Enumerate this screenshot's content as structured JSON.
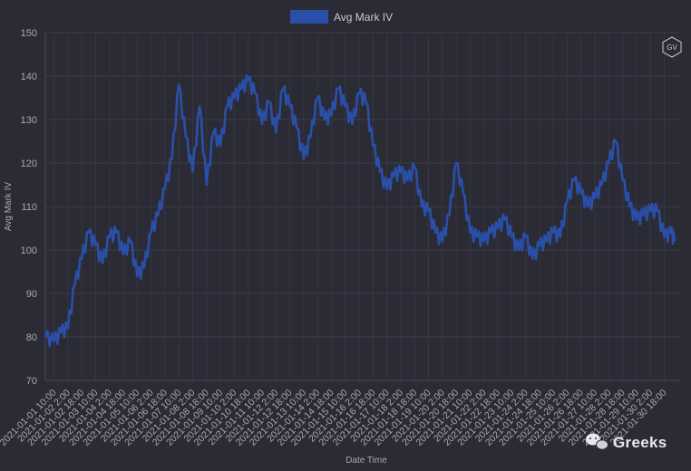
{
  "chart_data": {
    "type": "line",
    "title": "",
    "xlabel": "Date Time",
    "ylabel": "Avg Mark IV",
    "ylim": [
      70,
      150
    ],
    "yticks": [
      70,
      80,
      90,
      100,
      110,
      120,
      130,
      140,
      150
    ],
    "grid": true,
    "legend_position": "top-center",
    "x_tick_labels": [
      "2021-01-01 10:00",
      "2021-01-02 2:00",
      "2021-01-02 18:00",
      "2021-01-03 10:00",
      "2021-01-04 2:00",
      "2021-01-04 18:00",
      "2021-01-05 10:00",
      "2021-01-06 2:00",
      "2021-01-06 18:00",
      "2021-01-07 10:00",
      "2021-01-08 2:00",
      "2021-01-08 18:00",
      "2021-01-09 10:00",
      "2021-01-10 2:00",
      "2021-01-10 18:00",
      "2021-01-11 10:00",
      "2021-01-12 2:00",
      "2021-01-12 18:00",
      "2021-01-13 10:00",
      "2021-01-14 2:00",
      "2021-01-14 18:00",
      "2021-01-15 10:00",
      "2021-01-16 2:00",
      "2021-01-16 18:00",
      "2021-01-17 10:00",
      "2021-01-18 2:00",
      "2021-01-18 18:00",
      "2021-01-19 10:00",
      "2021-01-20 2:00",
      "2021-01-20 18:00",
      "2021-01-21 10:00",
      "2021-01-22 2:00",
      "2021-01-22 18:00",
      "2021-01-23 10:00",
      "2021-01-24 2:00",
      "2021-01-24 18:00",
      "2021-01-25 10:00",
      "2021-01-26 2:00",
      "2021-01-26 18:00",
      "2021-01-27 10:00",
      "2021-01-28 2:00",
      "2021-01-28 18:00",
      "2021-01-29 10:00",
      "2021-01-30 2:00",
      "2021-01-30 18:00"
    ],
    "series": [
      {
        "name": "Avg Mark IV",
        "color": "#2a4fa8",
        "x": [
          "2021-01-01 00:00",
          "2021-01-01 10:00",
          "2021-01-01 18:00",
          "2021-01-02 02:00",
          "2021-01-02 10:00",
          "2021-01-02 18:00",
          "2021-01-03 02:00",
          "2021-01-03 10:00",
          "2021-01-03 18:00",
          "2021-01-04 02:00",
          "2021-01-04 10:00",
          "2021-01-04 18:00",
          "2021-01-05 02:00",
          "2021-01-05 10:00",
          "2021-01-05 18:00",
          "2021-01-06 02:00",
          "2021-01-06 10:00",
          "2021-01-06 18:00",
          "2021-01-07 02:00",
          "2021-01-07 10:00",
          "2021-01-07 18:00",
          "2021-01-08 02:00",
          "2021-01-08 10:00",
          "2021-01-08 18:00",
          "2021-01-09 02:00",
          "2021-01-09 10:00",
          "2021-01-09 18:00",
          "2021-01-10 02:00",
          "2021-01-10 10:00",
          "2021-01-10 18:00",
          "2021-01-11 02:00",
          "2021-01-11 10:00",
          "2021-01-11 18:00",
          "2021-01-12 02:00",
          "2021-01-12 10:00",
          "2021-01-12 18:00",
          "2021-01-13 02:00",
          "2021-01-13 10:00",
          "2021-01-13 18:00",
          "2021-01-14 02:00",
          "2021-01-14 10:00",
          "2021-01-14 18:00",
          "2021-01-15 02:00",
          "2021-01-15 10:00",
          "2021-01-15 18:00",
          "2021-01-16 02:00",
          "2021-01-16 10:00",
          "2021-01-16 18:00",
          "2021-01-17 02:00",
          "2021-01-17 10:00",
          "2021-01-17 18:00",
          "2021-01-18 02:00",
          "2021-01-18 10:00",
          "2021-01-18 18:00",
          "2021-01-19 02:00",
          "2021-01-19 10:00",
          "2021-01-19 18:00",
          "2021-01-20 02:00",
          "2021-01-20 10:00",
          "2021-01-20 18:00",
          "2021-01-21 02:00",
          "2021-01-21 10:00",
          "2021-01-21 18:00",
          "2021-01-22 02:00",
          "2021-01-22 10:00",
          "2021-01-22 18:00",
          "2021-01-23 02:00",
          "2021-01-23 10:00",
          "2021-01-23 18:00",
          "2021-01-24 02:00",
          "2021-01-24 10:00",
          "2021-01-24 18:00",
          "2021-01-25 02:00",
          "2021-01-25 10:00",
          "2021-01-25 18:00",
          "2021-01-26 02:00",
          "2021-01-26 10:00",
          "2021-01-26 18:00",
          "2021-01-27 02:00",
          "2021-01-27 10:00",
          "2021-01-27 18:00",
          "2021-01-28 02:00",
          "2021-01-28 10:00",
          "2021-01-28 18:00",
          "2021-01-29 02:00",
          "2021-01-29 10:00",
          "2021-01-29 18:00",
          "2021-01-30 02:00",
          "2021-01-30 10:00",
          "2021-01-30 18:00",
          "2021-01-31 02:00",
          "2021-01-31 06:00"
        ],
        "values": [
          80,
          79,
          81,
          82,
          92,
          98,
          104,
          101,
          97,
          103,
          104,
          99,
          102,
          94,
          96,
          104,
          108,
          114,
          121,
          138,
          126,
          118,
          133,
          115,
          127,
          124,
          133,
          135,
          137,
          139,
          136,
          129,
          134,
          127,
          137,
          133,
          128,
          121,
          126,
          135,
          130,
          131,
          137,
          133,
          129,
          136,
          134,
          124,
          118,
          114,
          117,
          118,
          116,
          119,
          110,
          109,
          104,
          102,
          108,
          120,
          113,
          104,
          103,
          102,
          104,
          105,
          107,
          103,
          100,
          103,
          98,
          101,
          102,
          104,
          103,
          111,
          116,
          113,
          110,
          112,
          115,
          120,
          125,
          116,
          110,
          107,
          108,
          109,
          109,
          103,
          104,
          102
        ]
      }
    ]
  },
  "legend": {
    "label": "Avg Mark IV",
    "color": "#2a4fa8"
  },
  "watermark": {
    "text": "Greeks"
  },
  "logo": {
    "text": "GV"
  }
}
